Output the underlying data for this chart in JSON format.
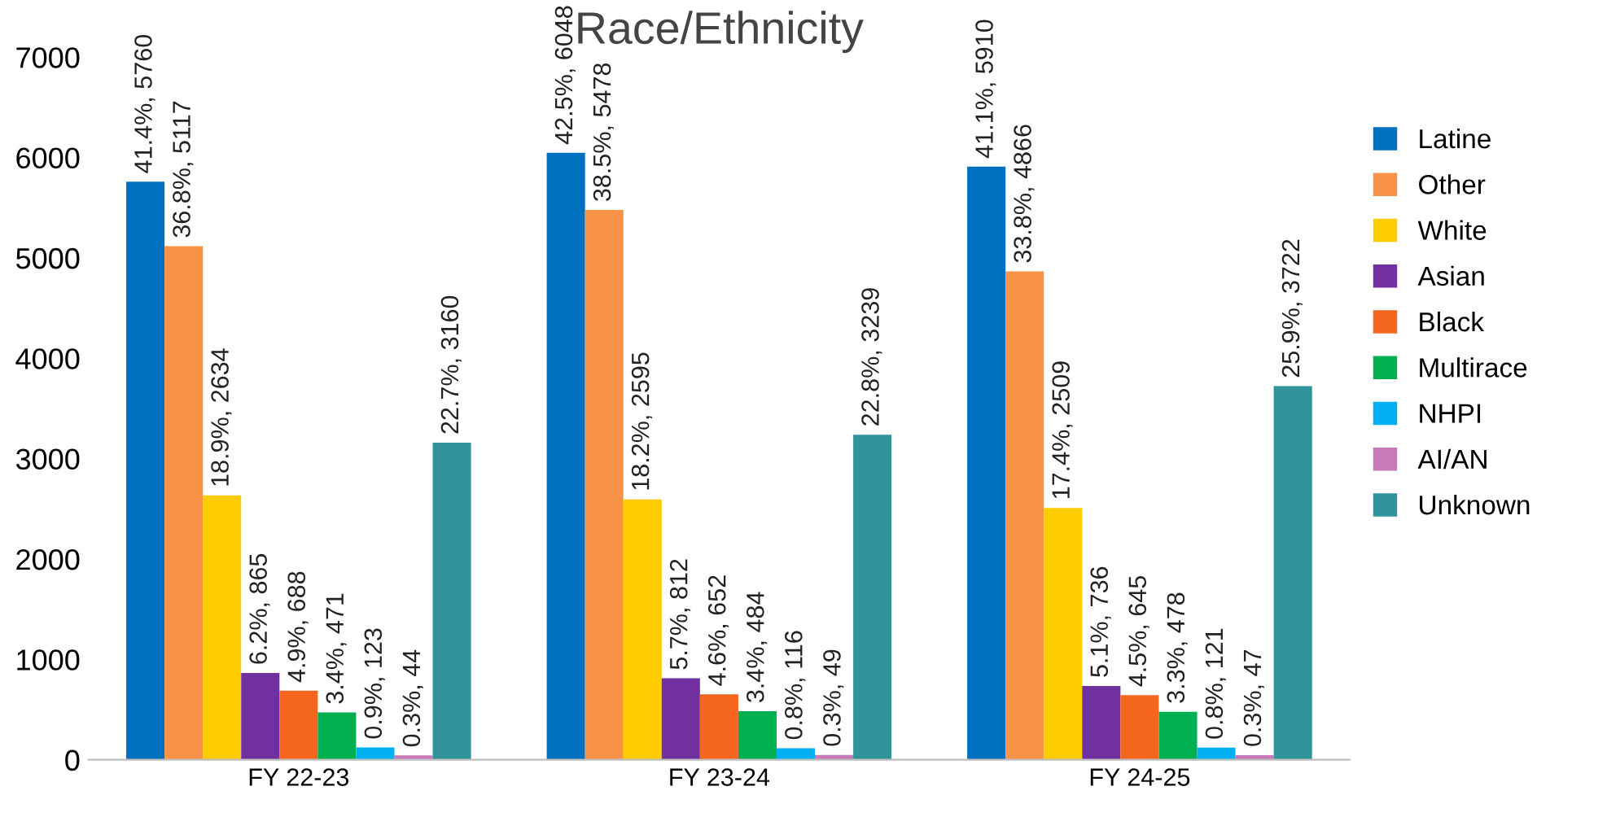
{
  "chart_data": {
    "type": "bar",
    "title": "Race/Ethnicity",
    "categories": [
      "FY 22-23",
      "FY 23-24",
      "FY 24-25"
    ],
    "ylim": [
      0,
      7000
    ],
    "yticks": [
      0,
      1000,
      2000,
      3000,
      4000,
      5000,
      6000,
      7000
    ],
    "grid": false,
    "legend": "right",
    "series": [
      {
        "name": "Latine",
        "color": "#0070c0",
        "values": [
          5760,
          6048,
          5910
        ],
        "value_labels": [
          "41.4%, 5760",
          "42.5%, 6048",
          "41.1%, 5910"
        ]
      },
      {
        "name": "Other",
        "color": "#f79246",
        "values": [
          5117,
          5478,
          4866
        ],
        "value_labels": [
          "36.8%, 5117",
          "38.5%, 5478",
          "33.8%, 4866"
        ]
      },
      {
        "name": "White",
        "color": "#ffcc00",
        "values": [
          2634,
          2595,
          2509
        ],
        "value_labels": [
          "18.9%, 2634",
          "18.2%, 2595",
          "17.4%, 2509"
        ]
      },
      {
        "name": "Asian",
        "color": "#7030a0",
        "values": [
          865,
          812,
          736
        ],
        "value_labels": [
          "6.2%, 865",
          "5.7%, 812",
          "5.1%, 736"
        ]
      },
      {
        "name": "Black",
        "color": "#f4651e",
        "values": [
          688,
          652,
          645
        ],
        "value_labels": [
          "4.9%, 688",
          "4.6%, 652",
          "4.5%, 645"
        ]
      },
      {
        "name": "Multirace",
        "color": "#00b050",
        "values": [
          471,
          484,
          478
        ],
        "value_labels": [
          "3.4%, 471",
          "3.4%, 484",
          "3.3%, 478"
        ]
      },
      {
        "name": "NHPI",
        "color": "#00b0f0",
        "values": [
          123,
          116,
          121
        ],
        "value_labels": [
          "0.9%, 123",
          "0.8%, 116",
          "0.8%, 121"
        ]
      },
      {
        "name": "AI/AN",
        "color": "#c879b8",
        "values": [
          44,
          49,
          47
        ],
        "value_labels": [
          "0.3%, 44",
          "0.3%, 49",
          "0.3%, 47"
        ]
      },
      {
        "name": "Unknown",
        "color": "#31939b",
        "values": [
          3160,
          3239,
          3722
        ],
        "value_labels": [
          "22.7%, 3160",
          "22.8%, 3239",
          "25.9%, 3722"
        ]
      }
    ]
  }
}
